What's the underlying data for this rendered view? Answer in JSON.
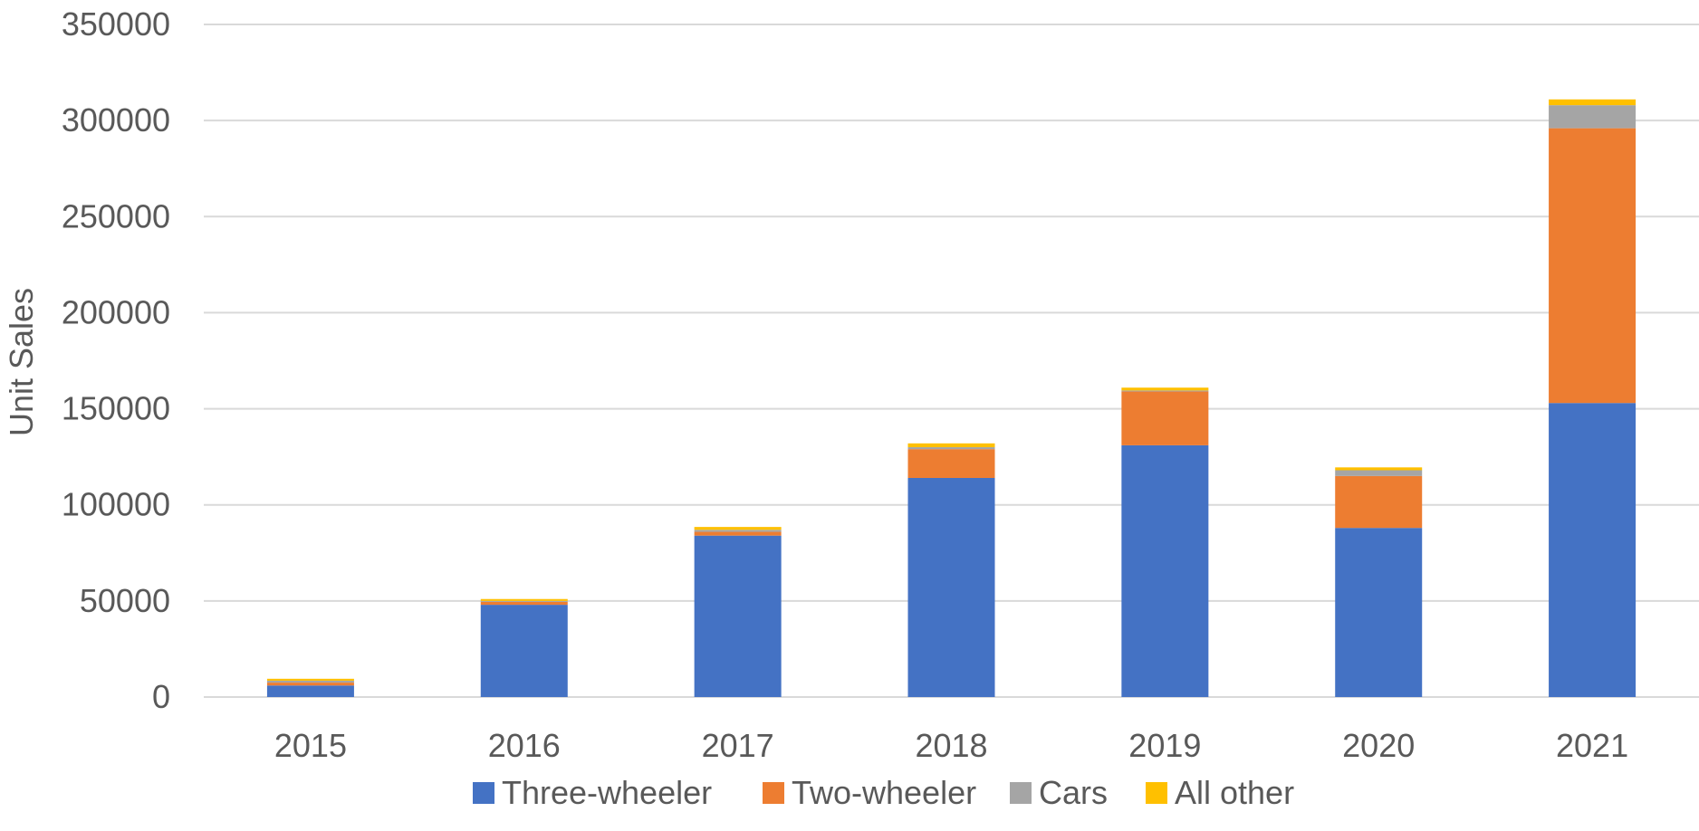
{
  "chart_data": {
    "type": "bar",
    "stacked": true,
    "categories": [
      "2015",
      "2016",
      "2017",
      "2018",
      "2019",
      "2020",
      "2021"
    ],
    "series": [
      {
        "name": "Three-wheeler",
        "color": "#4472C4",
        "values": [
          6000,
          48000,
          84000,
          114000,
          131000,
          88000,
          153000
        ]
      },
      {
        "name": "Two-wheeler",
        "color": "#ED7D31",
        "values": [
          1500,
          1500,
          2000,
          15000,
          28000,
          27000,
          143000
        ]
      },
      {
        "name": "Cars",
        "color": "#A5A5A5",
        "values": [
          1000,
          500,
          1000,
          1000,
          500,
          3000,
          12000
        ]
      },
      {
        "name": "All other",
        "color": "#FFC000",
        "values": [
          1000,
          1000,
          1500,
          2000,
          1500,
          1500,
          3000
        ]
      }
    ],
    "xlabel": "",
    "ylabel": "Unit Sales",
    "ylim": [
      0,
      350000
    ],
    "yticks": [
      "0",
      "50000",
      "100000",
      "150000",
      "200000",
      "250000",
      "300000",
      "350000"
    ],
    "grid": true,
    "gridline_color": "#D9D9D9",
    "legend_position": "bottom"
  }
}
